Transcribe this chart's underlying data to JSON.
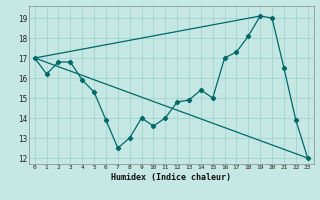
{
  "xlabel": "Humidex (Indice chaleur)",
  "xlim": [
    -0.5,
    23.5
  ],
  "ylim": [
    11.7,
    19.6
  ],
  "yticks": [
    12,
    13,
    14,
    15,
    16,
    17,
    18,
    19
  ],
  "xticks": [
    0,
    1,
    2,
    3,
    4,
    5,
    6,
    7,
    8,
    9,
    10,
    11,
    12,
    13,
    14,
    15,
    16,
    17,
    18,
    19,
    20,
    21,
    22,
    23
  ],
  "background_color": "#c5e8e5",
  "grid_color": "#9ecfcc",
  "line_color": "#006868",
  "line1_x": [
    0,
    1,
    2,
    3,
    4,
    5,
    6,
    7,
    8,
    9,
    10,
    11,
    12,
    13,
    14,
    15,
    16,
    17,
    18,
    19,
    20,
    21,
    22,
    23
  ],
  "line1_y": [
    17.0,
    16.2,
    16.8,
    16.8,
    15.9,
    15.3,
    13.9,
    12.5,
    13.0,
    14.0,
    13.6,
    14.0,
    14.8,
    14.9,
    15.4,
    15.0,
    17.0,
    17.3,
    18.1,
    19.1,
    19.0,
    16.5,
    13.9,
    12.0
  ],
  "line2_x": [
    0,
    19
  ],
  "line2_y": [
    17.0,
    19.1
  ],
  "line3_x": [
    0,
    23
  ],
  "line3_y": [
    17.0,
    12.0
  ]
}
